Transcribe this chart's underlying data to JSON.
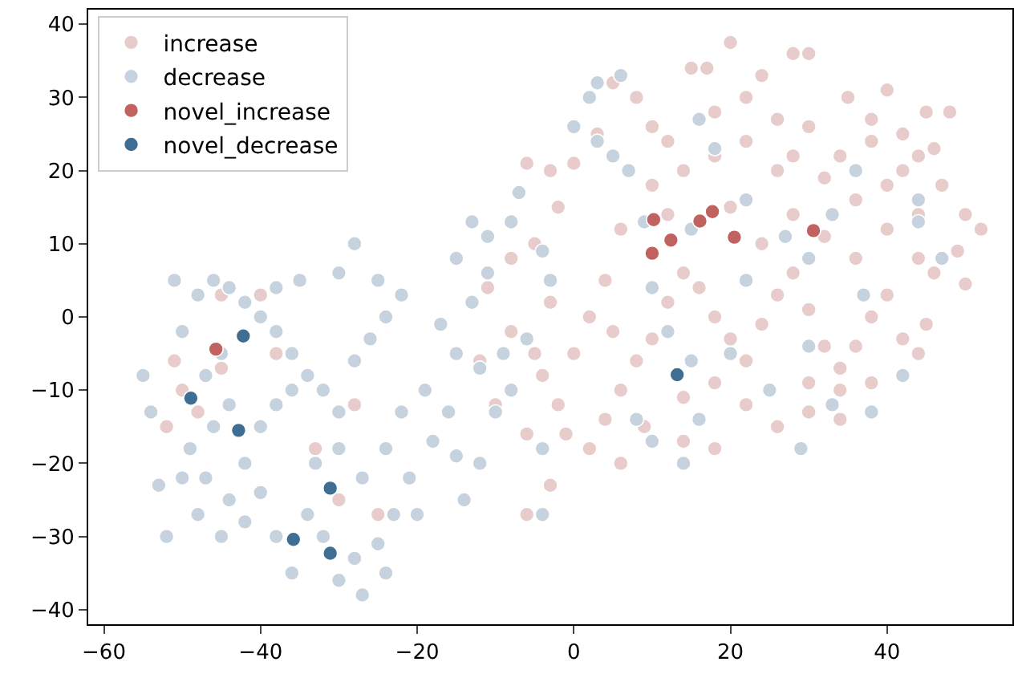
{
  "chart_data": {
    "type": "scatter",
    "xlim": [
      -62,
      56
    ],
    "ylim": [
      -42,
      42
    ],
    "xticks": [
      -60,
      -40,
      -20,
      0,
      20,
      40
    ],
    "yticks": [
      -40,
      -30,
      -20,
      -10,
      0,
      10,
      20,
      30,
      40
    ],
    "legend": "top left",
    "marker": "circle",
    "series": [
      {
        "name": "increase",
        "color": "#e8cccb",
        "x": [
          15,
          17,
          20,
          28,
          30,
          24,
          35,
          40,
          45,
          48,
          42,
          38,
          44,
          47,
          50,
          52,
          49,
          46,
          50,
          44,
          40,
          36,
          32,
          28,
          26,
          22,
          18,
          14,
          10,
          8,
          5,
          3,
          0,
          -3,
          -6,
          -2,
          -5,
          -8,
          -11,
          -8,
          -4,
          -2,
          -1,
          2,
          4,
          6,
          8,
          10,
          12,
          14,
          16,
          18,
          20,
          22,
          24,
          26,
          28,
          30,
          32,
          34,
          36,
          38,
          40,
          42,
          44,
          34,
          30,
          26,
          22,
          18,
          14,
          9,
          6,
          -6,
          -6,
          -3,
          34,
          30,
          -50,
          -48,
          -52,
          -45,
          -40,
          -38,
          -30,
          -25,
          -28,
          -33,
          -45,
          -51,
          4,
          2,
          0,
          -3,
          6,
          10,
          12,
          20,
          24,
          28,
          32,
          36,
          40,
          44,
          26,
          30,
          34,
          38,
          42,
          46,
          5,
          -5,
          -10,
          -12,
          14,
          18,
          22,
          18,
          12,
          38,
          45
        ],
        "values": [
          34,
          34,
          37.5,
          36,
          36,
          33,
          30,
          31,
          28,
          28,
          25,
          24,
          22,
          18,
          14,
          12,
          9,
          6,
          4.5,
          8,
          12,
          16,
          19,
          22,
          27,
          24,
          22,
          20,
          26,
          30,
          32,
          25,
          21,
          20,
          21,
          15,
          10,
          8,
          4,
          -2,
          -8,
          -12,
          -16,
          -18,
          -14,
          -10,
          -6,
          -3,
          2,
          6,
          4,
          0,
          -3,
          -6,
          -1,
          3,
          6,
          1,
          -4,
          -7,
          -4,
          0,
          3,
          -3,
          -5,
          -10,
          -13,
          -15,
          -12,
          -9,
          -11,
          -15,
          -20,
          -16,
          -27,
          -23,
          -14,
          -9,
          -10,
          -13,
          -15,
          -7,
          3,
          -5,
          -25,
          -27,
          -12,
          -18,
          3,
          -6,
          5,
          0,
          -5,
          2,
          12,
          18,
          14,
          15,
          10,
          14,
          11,
          8,
          18,
          14,
          20,
          26,
          22,
          27,
          20,
          23,
          -2,
          -5,
          -12,
          -6,
          -17,
          -18,
          30,
          28,
          24,
          -9,
          -1
        ]
      },
      {
        "name": "decrease",
        "color": "#c6d3de",
        "x": [
          -55,
          -54,
          -53,
          -52,
          -50,
          -51,
          -48,
          -46,
          -44,
          -42,
          -40,
          -38,
          -36,
          -34,
          -32,
          -30,
          -28,
          -26,
          -24,
          -22,
          -25,
          -30,
          -28,
          -35,
          -38,
          -45,
          -47,
          -49,
          -47,
          -44,
          -42,
          -40,
          -38,
          -36,
          -44,
          -46,
          -50,
          -48,
          -45,
          -42,
          -40,
          -38,
          -36,
          -34,
          -32,
          -30,
          -28,
          -27,
          -25,
          -23,
          -20,
          -33,
          -30,
          -27,
          -24,
          -21,
          -18,
          -15,
          -14,
          -12,
          -16,
          -19,
          -22,
          -10,
          -8,
          -12,
          -15,
          -17,
          -13,
          -11,
          -15,
          -13,
          -11,
          -7,
          -8,
          -4,
          -3,
          -6,
          -9,
          -4,
          -4,
          -24,
          0,
          3,
          5,
          2,
          3,
          6,
          7,
          9,
          10,
          12,
          8,
          10,
          14,
          16,
          15,
          20,
          22,
          25,
          30,
          33,
          37,
          42,
          44,
          47,
          44,
          38,
          29,
          18,
          16,
          22,
          27,
          15,
          30,
          33,
          36
        ],
        "values": [
          -8,
          -13,
          -23,
          -30,
          -2,
          5,
          3,
          5,
          4,
          2,
          0,
          -2,
          -5,
          -8,
          -10,
          -13,
          -6,
          -3,
          0,
          3,
          5,
          6,
          10,
          5,
          4,
          -5,
          -8,
          -18,
          -22,
          -25,
          -20,
          -15,
          -12,
          -10,
          -12,
          -15,
          -22,
          -27,
          -30,
          -28,
          -24,
          -30,
          -35,
          -27,
          -30,
          -36,
          -33,
          -38,
          -31,
          -27,
          -27,
          -20,
          -18,
          -22,
          -18,
          -22,
          -17,
          -19,
          -25,
          -20,
          -13,
          -10,
          -13,
          -13,
          -10,
          -7,
          -5,
          -1,
          2,
          6,
          8,
          13,
          11,
          17,
          13,
          9,
          5,
          -3,
          -5,
          -18,
          -27,
          -35,
          26,
          24,
          22,
          30,
          32,
          33,
          20,
          13,
          4,
          -2,
          -14,
          -17,
          -20,
          -14,
          -6,
          -5,
          5,
          -10,
          -4,
          -12,
          3,
          -8,
          13,
          8,
          16,
          -13,
          -18,
          23,
          27,
          16,
          11,
          12,
          8,
          14,
          20
        ]
      },
      {
        "name": "novel_increase",
        "color": "#c0625f",
        "x": [
          16.1,
          10.2,
          12.4,
          10.0,
          17.7,
          20.5,
          30.6,
          -45.7
        ],
        "values": [
          13.1,
          13.3,
          10.5,
          8.7,
          14.4,
          10.9,
          11.8,
          -4.4
        ]
      },
      {
        "name": "novel_decrease",
        "color": "#3f6e92",
        "x": [
          -42.2,
          -48.9,
          -42.8,
          -31.1,
          -35.8,
          -31.1,
          13.2
        ],
        "values": [
          -2.6,
          -11.1,
          -15.5,
          -23.4,
          -30.4,
          -32.3,
          -7.9
        ]
      }
    ]
  }
}
